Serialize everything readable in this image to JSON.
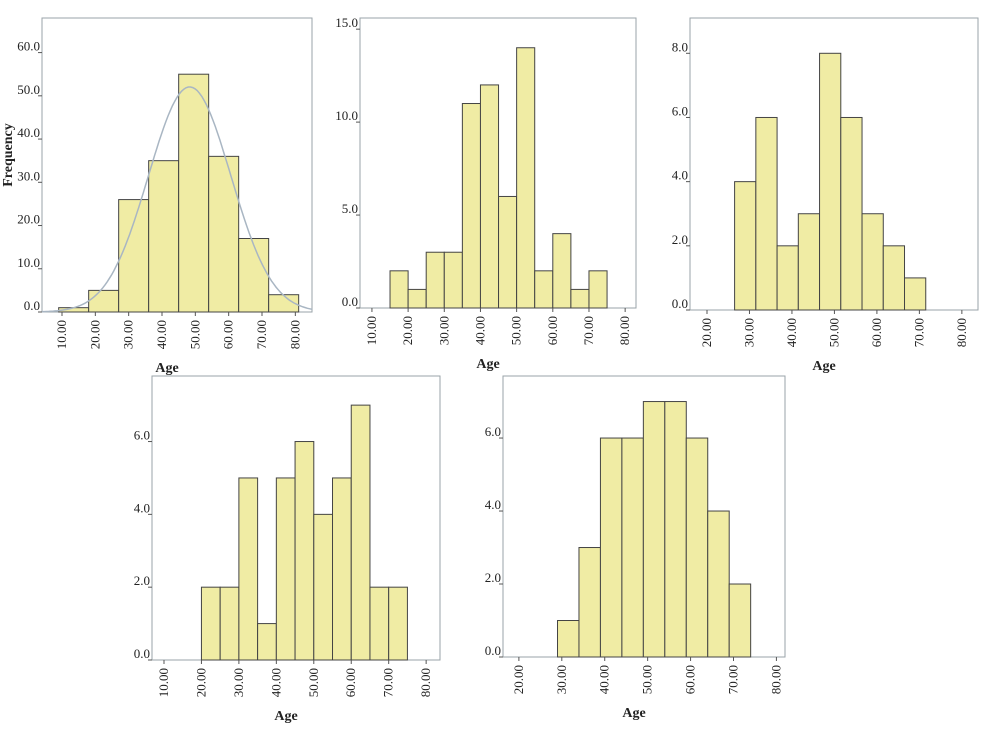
{
  "chart_data": [
    {
      "type": "histogram",
      "bins": [
        9,
        18,
        27,
        36,
        45,
        54,
        63,
        72,
        81
      ],
      "values": [
        1,
        5,
        26,
        35,
        55,
        36,
        17,
        4
      ],
      "color": "#f0eca4",
      "normal_curve": true,
      "curve_color": "#a9b6c3",
      "xlim": [
        4,
        85
      ],
      "ylim": [
        0,
        68
      ],
      "xticks": [
        {
          "value": 10,
          "label": "10.00"
        },
        {
          "value": 20,
          "label": "20.00"
        },
        {
          "value": 30,
          "label": "30.00"
        },
        {
          "value": 40,
          "label": "40.00"
        },
        {
          "value": 50,
          "label": "50.00"
        },
        {
          "value": 60,
          "label": "60.00"
        },
        {
          "value": 70,
          "label": "70.00"
        },
        {
          "value": 80,
          "label": "80.00"
        }
      ],
      "yticks": [
        {
          "value": 0,
          "label": "0.0"
        },
        {
          "value": 10,
          "label": "10.0"
        },
        {
          "value": 20,
          "label": "20.0"
        },
        {
          "value": 30,
          "label": "30.0"
        },
        {
          "value": 40,
          "label": "40.0"
        },
        {
          "value": 50,
          "label": "50.0"
        },
        {
          "value": 60,
          "label": "60.0"
        }
      ],
      "x_label": "Age",
      "y_label": "Frequency"
    },
    {
      "type": "histogram",
      "bins": [
        15,
        20,
        25,
        30,
        35,
        40,
        45,
        50,
        55,
        60,
        65,
        70,
        75
      ],
      "values": [
        2,
        1,
        3,
        3,
        11,
        12,
        6,
        14,
        2,
        4,
        1,
        2
      ],
      "color": "#f0eca4",
      "xlim": [
        6.7,
        83
      ],
      "ylim": [
        0,
        15.6
      ],
      "xticks": [
        {
          "value": 10,
          "label": "10.00"
        },
        {
          "value": 20,
          "label": "20.00"
        },
        {
          "value": 30,
          "label": "30.00"
        },
        {
          "value": 40,
          "label": "40.00"
        },
        {
          "value": 50,
          "label": "50.00"
        },
        {
          "value": 60,
          "label": "60.00"
        },
        {
          "value": 70,
          "label": "70.00"
        },
        {
          "value": 80,
          "label": "80.00"
        }
      ],
      "yticks": [
        {
          "value": 0,
          "label": "0.0"
        },
        {
          "value": 5,
          "label": "5.0"
        },
        {
          "value": 10,
          "label": "10.0"
        },
        {
          "value": 15,
          "label": "15.0"
        }
      ],
      "x_label": "Age"
    },
    {
      "type": "histogram",
      "bins": [
        26.5,
        31.5,
        36.5,
        41.5,
        46.5,
        51.5,
        56.5,
        61.5,
        66.5,
        71.5
      ],
      "values": [
        4,
        6,
        2,
        3,
        8,
        6,
        3,
        2,
        1
      ],
      "color": "#f0eca4",
      "xlim": [
        16,
        83.8
      ],
      "ylim": [
        0,
        9.1
      ],
      "xticks": [
        {
          "value": 20,
          "label": "20.00"
        },
        {
          "value": 30,
          "label": "30.00"
        },
        {
          "value": 40,
          "label": "40.00"
        },
        {
          "value": 50,
          "label": "50.00"
        },
        {
          "value": 60,
          "label": "60.00"
        },
        {
          "value": 70,
          "label": "70.00"
        },
        {
          "value": 80,
          "label": "80.00"
        }
      ],
      "yticks": [
        {
          "value": 0,
          "label": "0.0"
        },
        {
          "value": 2,
          "label": "2.0"
        },
        {
          "value": 4,
          "label": "4.0"
        },
        {
          "value": 6,
          "label": "6.0"
        },
        {
          "value": 8,
          "label": "8.0"
        }
      ],
      "x_label": "Age"
    },
    {
      "type": "histogram",
      "bins": [
        20,
        25,
        30,
        35,
        40,
        45,
        50,
        55,
        60,
        65,
        70,
        75
      ],
      "values": [
        2,
        2,
        5,
        1,
        5,
        6,
        4,
        5,
        7,
        2,
        2
      ],
      "color": "#f0eca4",
      "xlim": [
        6.8,
        83.7
      ],
      "ylim": [
        0,
        7.8
      ],
      "xticks": [
        {
          "value": 10,
          "label": "10.00"
        },
        {
          "value": 20,
          "label": "20.00"
        },
        {
          "value": 30,
          "label": "30.00"
        },
        {
          "value": 40,
          "label": "40.00"
        },
        {
          "value": 50,
          "label": "50.00"
        },
        {
          "value": 60,
          "label": "60.00"
        },
        {
          "value": 70,
          "label": "70.00"
        },
        {
          "value": 80,
          "label": "80.00"
        }
      ],
      "yticks": [
        {
          "value": 0,
          "label": "0.0"
        },
        {
          "value": 2,
          "label": "2.0"
        },
        {
          "value": 4,
          "label": "4.0"
        },
        {
          "value": 6,
          "label": "6.0"
        }
      ],
      "x_label": "Age"
    },
    {
      "type": "histogram",
      "bins": [
        29,
        34,
        39,
        44,
        49,
        54,
        59,
        64,
        69,
        74
      ],
      "values": [
        1,
        3,
        6,
        6,
        7,
        7,
        6,
        4,
        2
      ],
      "color": "#f0eca4",
      "xlim": [
        16.3,
        82
      ],
      "ylim": [
        0,
        7.7
      ],
      "xticks": [
        {
          "value": 20,
          "label": "20.00"
        },
        {
          "value": 30,
          "label": "30.00"
        },
        {
          "value": 40,
          "label": "40.00"
        },
        {
          "value": 50,
          "label": "50.00"
        },
        {
          "value": 60,
          "label": "60.00"
        },
        {
          "value": 70,
          "label": "70.00"
        },
        {
          "value": 80,
          "label": "80.00"
        }
      ],
      "yticks": [
        {
          "value": 0,
          "label": "0.0"
        },
        {
          "value": 2,
          "label": "2.0"
        },
        {
          "value": 4,
          "label": "4.0"
        },
        {
          "value": 6,
          "label": "6.0"
        }
      ],
      "x_label": "Age"
    }
  ]
}
